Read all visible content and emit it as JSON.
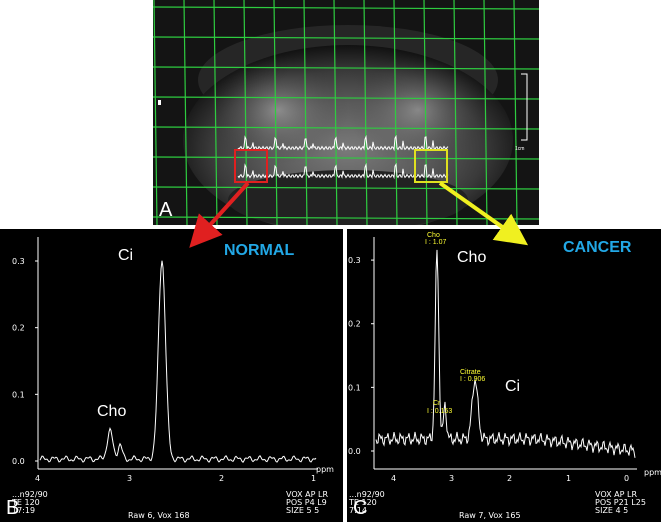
{
  "panel_a": {
    "letter": "A",
    "scale_label": "1cm"
  },
  "panel_b": {
    "letter": "B",
    "status_label": "NORMAL",
    "peak_labels": {
      "citrate": "Ci",
      "choline": "Cho"
    },
    "y_ticks": [
      "0.3",
      "0.2",
      "0.1",
      "0.0"
    ],
    "x_ticks": [
      "4",
      "3",
      "2",
      "1"
    ],
    "x_unit": "ppm",
    "footer": {
      "left_line1": "...n92/90",
      "left_line2": "TE 120",
      "left_line3": "17:19",
      "center": "Raw 6, Vox 168",
      "right_line1": "VOX AP LR",
      "right_line2": "POS P4 L9",
      "right_line3": "SIZE 5 5"
    }
  },
  "panel_c": {
    "letter": "C",
    "status_label": "CANCER",
    "peak_labels": {
      "choline": "Cho",
      "citrate": "Ci"
    },
    "annotations": {
      "cho_name": "Cho",
      "cho_value": "I : 1.07",
      "citrate_name": "Citrate",
      "citrate_value": "I : 0.906",
      "cr_name": "Cr",
      "cr_value": "I : 0.153"
    },
    "y_ticks": [
      "0.3",
      "0.2",
      "0.1",
      "0.0"
    ],
    "x_ticks": [
      "4",
      "3",
      "2",
      "1",
      "0"
    ],
    "x_unit": "ppm",
    "footer": {
      "left_line1": "...n92/90",
      "left_line2": "TE 120",
      "left_line3": "7:14",
      "center": "Raw 7, Vox 165",
      "right_line1": "VOX AP LR",
      "right_line2": "POS P21 L25",
      "right_line3": "SIZE 4 5"
    }
  },
  "colors": {
    "grid": "#2ecc40",
    "normal_box": "#e02020",
    "cancer_box": "#e0e020",
    "normal_arrow": "#e02020",
    "cancer_arrow": "#f0f020",
    "label_blue": "#22a8e6"
  }
}
